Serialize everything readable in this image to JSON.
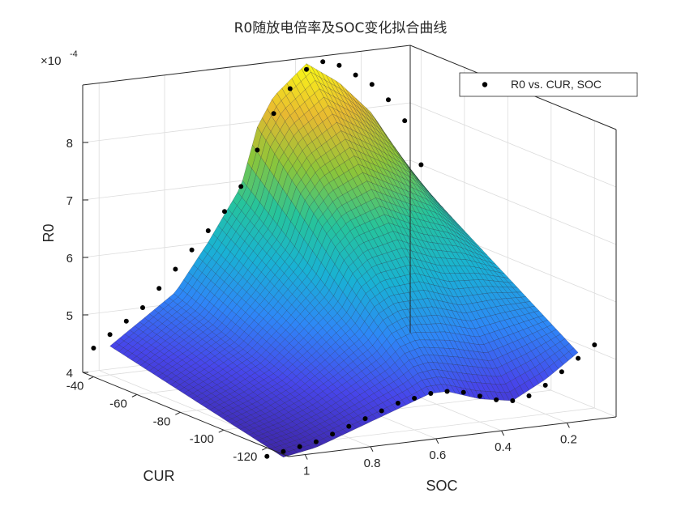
{
  "chart_data": {
    "type": "surface3d",
    "title": "R0随放电倍率及SOC变化拟合曲线",
    "xlabel": "CUR",
    "ylabel": "SOC",
    "zlabel": "R0",
    "exponent_label": "×10",
    "exponent_power": "-4",
    "xlim": [
      -130,
      -35
    ],
    "ylim": [
      0.05,
      1.05
    ],
    "zlim": [
      4,
      9
    ],
    "x_ticks": [
      -40,
      -60,
      -80,
      -100,
      -120
    ],
    "x_tick_labels": [
      "-40",
      "-60",
      "-80",
      "-100",
      "-120"
    ],
    "y_ticks": [
      1,
      0.8,
      0.6,
      0.4,
      0.2
    ],
    "y_tick_labels": [
      "1",
      "0.8",
      "0.6",
      "0.4",
      "0.2"
    ],
    "z_ticks": [
      4,
      5,
      6,
      7,
      8
    ],
    "z_tick_labels": [
      "4",
      "5",
      "6",
      "7",
      "8"
    ],
    "grid": true,
    "legend": {
      "position": "top-right",
      "entry": "R0 vs. CUR, SOC"
    },
    "colormap": [
      "#3e26a8",
      "#4746eb",
      "#2e87f7",
      "#19b2d4",
      "#26c49b",
      "#8cc539",
      "#e8b931",
      "#f9fb15"
    ],
    "surface": {
      "cur": [
        -40,
        -120
      ],
      "soc": [
        0.1,
        0.2,
        0.3,
        0.4,
        0.5,
        0.55,
        0.6,
        0.7,
        0.8,
        0.9,
        1.0
      ],
      "r0_at_cur_minus40": [
        7.0,
        8.0,
        8.6,
        9.0,
        8.5,
        8.0,
        7.0,
        6.1,
        5.3,
        4.9,
        4.5
      ],
      "r0_at_cur_minus120": [
        5.0,
        4.6,
        4.3,
        4.4,
        4.6,
        4.6,
        4.5,
        4.3,
        4.1,
        3.9,
        3.8
      ]
    },
    "points": {
      "soc": [
        0.05,
        0.1,
        0.15,
        0.2,
        0.25,
        0.3,
        0.35,
        0.4,
        0.45,
        0.5,
        0.55,
        0.6,
        0.65,
        0.7,
        0.75,
        0.8,
        0.85,
        0.9,
        0.95,
        1.0,
        1.05
      ],
      "r0_at_cur_minus40": [
        7.0,
        7.8,
        8.2,
        8.5,
        8.7,
        8.9,
        9.0,
        8.9,
        8.6,
        8.2,
        7.6,
        7.0,
        6.6,
        6.3,
        6.0,
        5.7,
        5.4,
        5.1,
        4.9,
        4.7,
        4.5
      ],
      "r0_at_cur_minus120": [
        5.1,
        4.9,
        4.7,
        4.5,
        4.35,
        4.3,
        4.35,
        4.45,
        4.55,
        4.6,
        4.6,
        4.55,
        4.5,
        4.4,
        4.3,
        4.2,
        4.1,
        4.0,
        3.95,
        3.9,
        3.85
      ]
    }
  }
}
